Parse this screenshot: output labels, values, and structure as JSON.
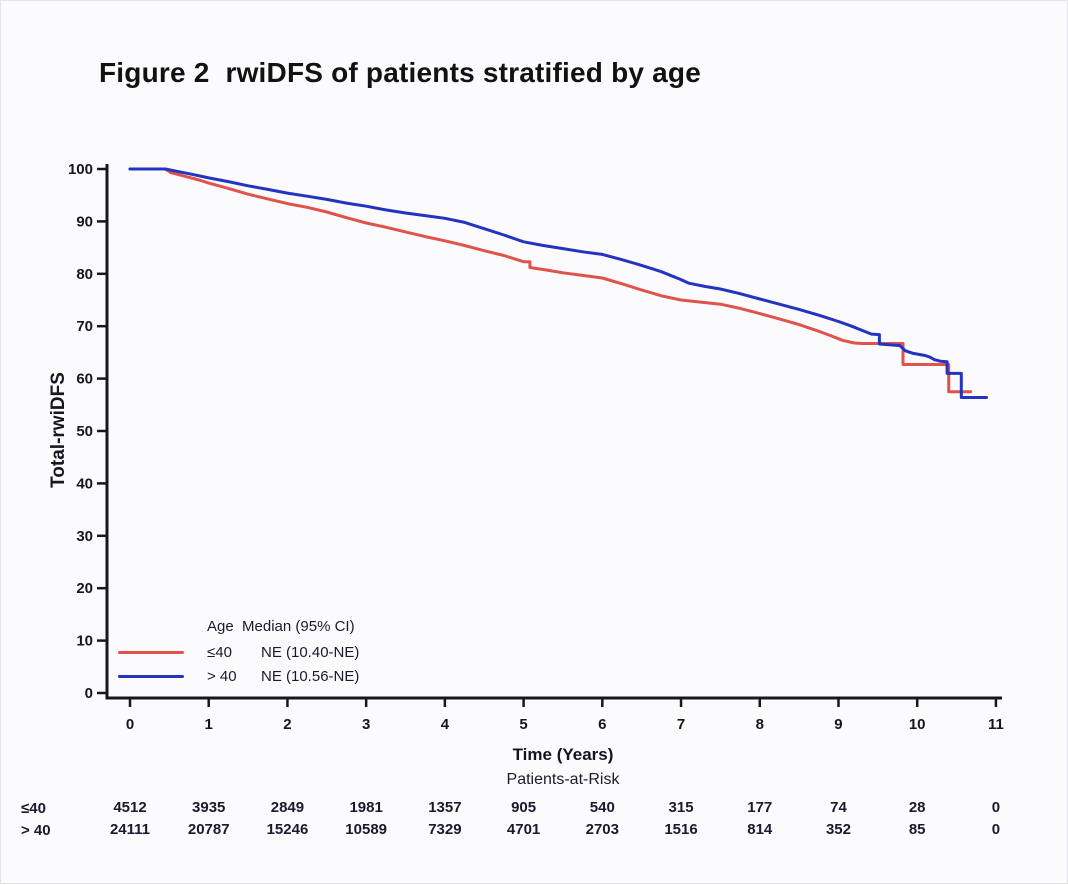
{
  "title": "Figure 2  rwiDFS of patients stratified by age",
  "chart_data": {
    "type": "line",
    "subtype": "kaplan-meier-step",
    "title": "Figure 2  rwiDFS of patients stratified by age",
    "xlabel": "Time (Years)",
    "ylabel": "Total-rwiDFS",
    "xlim": [
      0,
      11.3
    ],
    "ylim": [
      0,
      100
    ],
    "xticks": [
      0,
      1,
      2,
      3,
      4,
      5,
      6,
      7,
      8,
      9,
      10,
      11
    ],
    "yticks": [
      0,
      10,
      20,
      30,
      40,
      50,
      60,
      70,
      80,
      90,
      100
    ],
    "grid": false,
    "legend_position": "lower-left-inside",
    "legend": {
      "header": "Age  Median (95% CI)",
      "entries": [
        {
          "label": "≤40",
          "median": "NE (10.40-NE)",
          "color": "#e0524b"
        },
        {
          "label": "> 40",
          "median": "NE (10.56-NE)",
          "color": "#2433c0"
        }
      ]
    },
    "series": [
      {
        "name": "≤40",
        "color": "#e0524b",
        "points": [
          [
            0,
            100
          ],
          [
            0.45,
            100
          ],
          [
            0.52,
            99.3
          ],
          [
            0.7,
            98.6
          ],
          [
            0.9,
            97.8
          ],
          [
            1,
            97.3
          ],
          [
            1.25,
            96.3
          ],
          [
            1.5,
            95.2
          ],
          [
            1.75,
            94.3
          ],
          [
            2,
            93.4
          ],
          [
            2.25,
            92.7
          ],
          [
            2.5,
            91.8
          ],
          [
            2.75,
            90.7
          ],
          [
            3,
            89.7
          ],
          [
            3.25,
            88.9
          ],
          [
            3.5,
            88.0
          ],
          [
            3.75,
            87.1
          ],
          [
            4,
            86.3
          ],
          [
            4.25,
            85.4
          ],
          [
            4.5,
            84.4
          ],
          [
            4.75,
            83.5
          ],
          [
            5,
            82.3
          ],
          [
            5.08,
            82.3
          ],
          [
            5.08,
            81.2
          ],
          [
            5.3,
            80.7
          ],
          [
            5.5,
            80.2
          ],
          [
            5.75,
            79.7
          ],
          [
            6,
            79.2
          ],
          [
            6.25,
            78.1
          ],
          [
            6.5,
            76.9
          ],
          [
            6.75,
            75.8
          ],
          [
            7,
            75.0
          ],
          [
            7.25,
            74.6
          ],
          [
            7.5,
            74.2
          ],
          [
            7.75,
            73.4
          ],
          [
            8,
            72.4
          ],
          [
            8.25,
            71.4
          ],
          [
            8.5,
            70.3
          ],
          [
            8.7,
            69.3
          ],
          [
            8.9,
            68.2
          ],
          [
            9.05,
            67.3
          ],
          [
            9.2,
            66.8
          ],
          [
            9.3,
            66.7
          ],
          [
            9.82,
            66.7
          ],
          [
            9.82,
            62.7
          ],
          [
            10.4,
            62.7
          ],
          [
            10.4,
            57.5
          ],
          [
            10.68,
            57.5
          ]
        ]
      },
      {
        "name": "> 40",
        "color": "#2433c0",
        "points": [
          [
            0,
            100
          ],
          [
            0.45,
            100
          ],
          [
            0.55,
            99.7
          ],
          [
            0.75,
            99.1
          ],
          [
            1,
            98.3
          ],
          [
            1.25,
            97.6
          ],
          [
            1.5,
            96.8
          ],
          [
            1.75,
            96.1
          ],
          [
            2,
            95.4
          ],
          [
            2.25,
            94.8
          ],
          [
            2.5,
            94.2
          ],
          [
            2.75,
            93.5
          ],
          [
            3,
            92.9
          ],
          [
            3.25,
            92.2
          ],
          [
            3.5,
            91.6
          ],
          [
            3.75,
            91.1
          ],
          [
            4,
            90.6
          ],
          [
            4.25,
            89.8
          ],
          [
            4.5,
            88.6
          ],
          [
            4.75,
            87.4
          ],
          [
            5,
            86.1
          ],
          [
            5.25,
            85.4
          ],
          [
            5.5,
            84.8
          ],
          [
            5.75,
            84.2
          ],
          [
            6,
            83.7
          ],
          [
            6.25,
            82.7
          ],
          [
            6.5,
            81.6
          ],
          [
            6.75,
            80.4
          ],
          [
            7,
            78.9
          ],
          [
            7.1,
            78.2
          ],
          [
            7.3,
            77.6
          ],
          [
            7.5,
            77.1
          ],
          [
            7.75,
            76.2
          ],
          [
            8,
            75.2
          ],
          [
            8.25,
            74.2
          ],
          [
            8.5,
            73.2
          ],
          [
            8.75,
            72.1
          ],
          [
            9,
            70.9
          ],
          [
            9.15,
            70.1
          ],
          [
            9.3,
            69.2
          ],
          [
            9.42,
            68.5
          ],
          [
            9.52,
            68.4
          ],
          [
            9.52,
            66.6
          ],
          [
            9.78,
            66.3
          ],
          [
            9.85,
            65.3
          ],
          [
            9.95,
            64.8
          ],
          [
            10.1,
            64.4
          ],
          [
            10.16,
            64.1
          ],
          [
            10.22,
            63.6
          ],
          [
            10.3,
            63.3
          ],
          [
            10.38,
            63.2
          ],
          [
            10.38,
            61.0
          ],
          [
            10.56,
            61.0
          ],
          [
            10.56,
            56.4
          ],
          [
            10.88,
            56.4
          ]
        ]
      }
    ],
    "at_risk": {
      "caption": "Patients-at-Risk",
      "rows": [
        {
          "label": "≤40",
          "values": [
            4512,
            3935,
            2849,
            1981,
            1357,
            905,
            540,
            315,
            177,
            74,
            28,
            0
          ]
        },
        {
          "label": "> 40",
          "values": [
            24111,
            20787,
            15246,
            10589,
            7329,
            4701,
            2703,
            1516,
            814,
            352,
            85,
            0
          ]
        }
      ]
    }
  },
  "colors": {
    "background": "#fbfbfd",
    "axis": "#17171f",
    "text": "#15151c",
    "red_series": "#e0524b",
    "blue_series": "#2433c0"
  }
}
